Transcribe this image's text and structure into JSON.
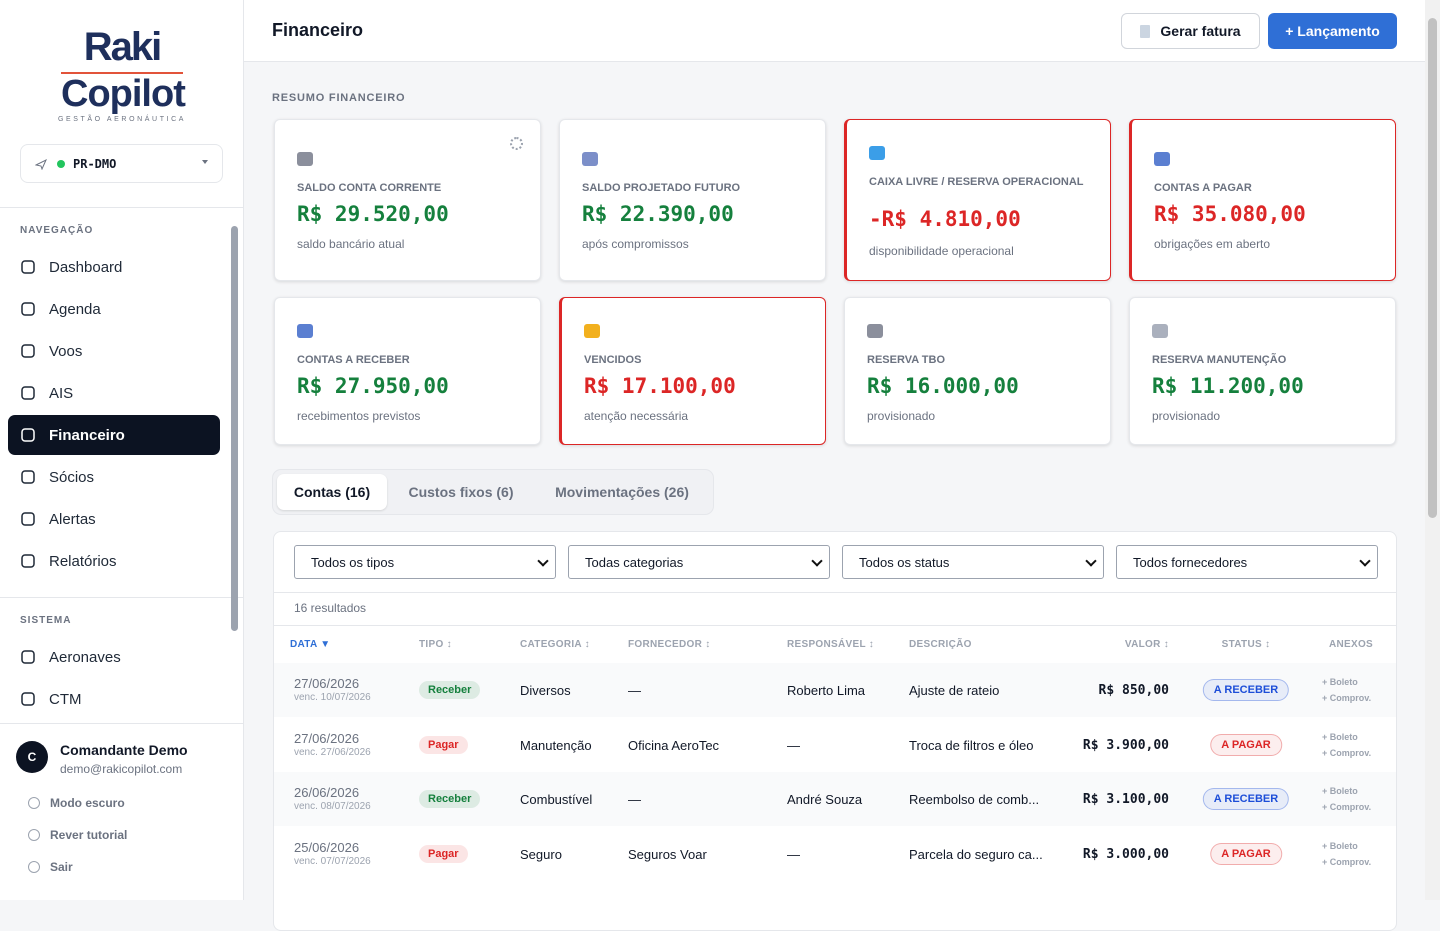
{
  "sidebar": {
    "logo": {
      "line1": "Raki",
      "line2": "Copilot",
      "tagline": "GESTÃO AERONÁUTICA"
    },
    "aircraft": "PR-DMO",
    "sections": [
      {
        "title": "NAVEGAÇÃO",
        "items": [
          {
            "label": "Dashboard"
          },
          {
            "label": "Agenda"
          },
          {
            "label": "Voos"
          },
          {
            "label": "AIS"
          },
          {
            "label": "Financeiro",
            "active": true
          },
          {
            "label": "Sócios"
          },
          {
            "label": "Alertas"
          },
          {
            "label": "Relatórios"
          }
        ]
      },
      {
        "title": "SISTEMA",
        "items": [
          {
            "label": "Aeronaves"
          },
          {
            "label": "CTM"
          }
        ]
      }
    ],
    "user": {
      "initial": "C",
      "name": "Comandante Demo",
      "email": "demo@rakicopilot.com"
    },
    "footer_links": [
      "Modo escuro",
      "Rever tutorial",
      "Sair"
    ]
  },
  "header": {
    "title": "Financeiro",
    "buttons": [
      "Gerar fatura",
      "+ Lançamento"
    ]
  },
  "summary": {
    "title": "RESUMO FINANCEIRO",
    "cards": [
      {
        "label": "SALDO CONTA CORRENTE",
        "value": "R$ 29.520,00",
        "note": "saldo bancário atual",
        "alert": false,
        "icon_color": "#8b8f9c"
      },
      {
        "label": "SALDO PROJETADO FUTURO",
        "value": "R$ 22.390,00",
        "note": "após compromissos",
        "alert": false,
        "icon_color": "#7c8fc9"
      },
      {
        "label": "CAIXA LIVRE / RESERVA OPERACIONAL",
        "value": "-R$ 4.810,00",
        "note": "disponibilidade operacional",
        "alert": true,
        "icon_color": "#3b9ee8"
      },
      {
        "label": "CONTAS A PAGAR",
        "value": "R$ 35.080,00",
        "note": "obrigações em aberto",
        "alert": true,
        "icon_color": "#5b7fd1"
      },
      {
        "label": "CONTAS A RECEBER",
        "value": "R$ 27.950,00",
        "note": "recebimentos previstos",
        "alert": false,
        "icon_color": "#5b7fd1"
      },
      {
        "label": "VENCIDOS",
        "value": "R$ 17.100,00",
        "note": "atenção necessária",
        "alert": true,
        "icon_color": "#f2b01e"
      },
      {
        "label": "RESERVA TBO",
        "value": "R$ 16.000,00",
        "note": "provisionado",
        "alert": false,
        "icon_color": "#8b8f9c"
      },
      {
        "label": "RESERVA MANUTENÇÃO",
        "value": "R$ 11.200,00",
        "note": "provisionado",
        "alert": false,
        "icon_color": "#aab0bd"
      }
    ]
  },
  "tabs": [
    {
      "label": "Contas (16)",
      "active": true
    },
    {
      "label": "Custos fixos (6)"
    },
    {
      "label": "Movimentações (26)"
    }
  ],
  "filters": [
    "Todos os tipos",
    "Todas categorias",
    "Todos os status",
    "Todos fornecedores"
  ],
  "results": "16 resultados",
  "table": {
    "columns": [
      "DATA",
      "TIPO",
      "CATEGORIA",
      "FORNECEDOR",
      "RESPONSÁVEL",
      "DESCRIÇÃO",
      "VALOR",
      "STATUS",
      "ANEXOS"
    ],
    "rows": [
      {
        "date": "27/06/2026",
        "due": "venc. 10/07/2026",
        "tipo": "Receber",
        "tipo_color": "#15803d",
        "categoria": "Diversos",
        "fornecedor": "—",
        "responsavel": "Roberto Lima",
        "descricao": "Ajuste de rateio",
        "valor": "R$ 850,00",
        "status": "A RECEBER",
        "status_color": "#1d4ed8",
        "anexos": [
          "+ Boleto",
          "+ Comprov."
        ]
      },
      {
        "date": "27/06/2026",
        "due": "venc. 27/06/2026",
        "tipo": "Pagar",
        "tipo_color": "#dc2626",
        "categoria": "Manutenção",
        "fornecedor": "Oficina AeroTec",
        "responsavel": "—",
        "descricao": "Troca de filtros e óleo",
        "valor": "R$ 3.900,00",
        "status": "A PAGAR",
        "status_color": "#dc2626",
        "anexos": [
          "+ Boleto",
          "+ Comprov."
        ]
      },
      {
        "date": "26/06/2026",
        "due": "venc. 08/07/2026",
        "tipo": "Receber",
        "tipo_color": "#15803d",
        "categoria": "Combustível",
        "fornecedor": "—",
        "responsavel": "André Souza",
        "descricao": "Reembolso de comb...",
        "valor": "R$ 3.100,00",
        "status": "A RECEBER",
        "status_color": "#1d4ed8",
        "anexos": [
          "+ Boleto",
          "+ Comprov."
        ]
      },
      {
        "date": "25/06/2026",
        "due": "venc. 07/07/2026",
        "tipo": "Pagar",
        "tipo_color": "#dc2626",
        "categoria": "Seguro",
        "fornecedor": "Seguros Voar",
        "responsavel": "—",
        "descricao": "Parcela do seguro ca...",
        "valor": "R$ 3.000,00",
        "status": "A PAGAR",
        "status_color": "#dc2626",
        "anexos": [
          "+ Boleto",
          "+ Comprov."
        ]
      }
    ]
  }
}
